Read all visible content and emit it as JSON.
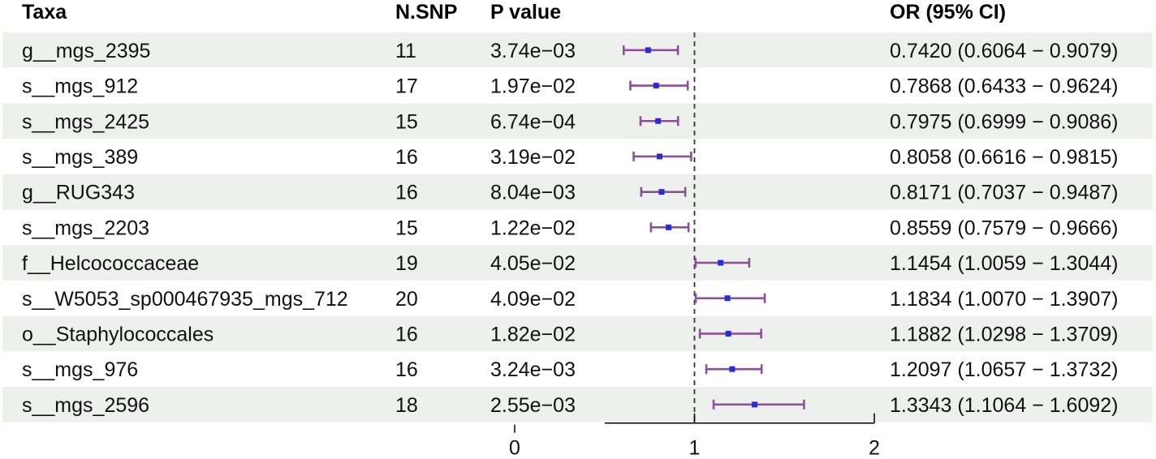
{
  "chart_data": {
    "type": "forest",
    "headers": {
      "taxa": "Taxa",
      "nsnp": "N.SNP",
      "pvalue": "P value",
      "or": "OR (95% CI)"
    },
    "rows": [
      {
        "taxa": "g__mgs_2395",
        "nsnp": "11",
        "pvalue": "3.74e−03",
        "or": 0.742,
        "lower": 0.6064,
        "upper": 0.9079,
        "or_text": "0.7420 (0.6064 − 0.9079)"
      },
      {
        "taxa": "s__mgs_912",
        "nsnp": "17",
        "pvalue": "1.97e−02",
        "or": 0.7868,
        "lower": 0.6433,
        "upper": 0.9624,
        "or_text": "0.7868 (0.6433 − 0.9624)"
      },
      {
        "taxa": "s__mgs_2425",
        "nsnp": "15",
        "pvalue": "6.74e−04",
        "or": 0.7975,
        "lower": 0.6999,
        "upper": 0.9086,
        "or_text": "0.7975 (0.6999 − 0.9086)"
      },
      {
        "taxa": "s__mgs_389",
        "nsnp": "16",
        "pvalue": "3.19e−02",
        "or": 0.8058,
        "lower": 0.6616,
        "upper": 0.9815,
        "or_text": "0.8058 (0.6616 − 0.9815)"
      },
      {
        "taxa": "g__RUG343",
        "nsnp": "16",
        "pvalue": "8.04e−03",
        "or": 0.8171,
        "lower": 0.7037,
        "upper": 0.9487,
        "or_text": "0.8171 (0.7037 − 0.9487)"
      },
      {
        "taxa": "s__mgs_2203",
        "nsnp": "15",
        "pvalue": "1.22e−02",
        "or": 0.8559,
        "lower": 0.7579,
        "upper": 0.9666,
        "or_text": "0.8559 (0.7579 − 0.9666)"
      },
      {
        "taxa": "f__Helcococcaceae",
        "nsnp": "19",
        "pvalue": "4.05e−02",
        "or": 1.1454,
        "lower": 1.0059,
        "upper": 1.3044,
        "or_text": "1.1454 (1.0059 − 1.3044)"
      },
      {
        "taxa": "s__W5053_sp000467935_mgs_712",
        "nsnp": "20",
        "pvalue": "4.09e−02",
        "or": 1.1834,
        "lower": 1.007,
        "upper": 1.3907,
        "or_text": "1.1834 (1.0070 − 1.3907)"
      },
      {
        "taxa": "o__Staphylococcales",
        "nsnp": "16",
        "pvalue": "1.82e−02",
        "or": 1.1882,
        "lower": 1.0298,
        "upper": 1.3709,
        "or_text": "1.1882 (1.0298 − 1.3709)"
      },
      {
        "taxa": "s__mgs_976",
        "nsnp": "16",
        "pvalue": "3.24e−03",
        "or": 1.2097,
        "lower": 1.0657,
        "upper": 1.3732,
        "or_text": "1.2097 (1.0657 − 1.3732)"
      },
      {
        "taxa": "s__mgs_2596",
        "nsnp": "18",
        "pvalue": "2.55e−03",
        "or": 1.3343,
        "lower": 1.1064,
        "upper": 1.6092,
        "or_text": "1.3343 (1.1064 − 1.6092)"
      }
    ],
    "x_ticks": [
      "0",
      "1",
      "2"
    ],
    "xlim": [
      0,
      2
    ],
    "reference_line": 1,
    "colors": {
      "stripe": "#eef0ee",
      "ci_line": "#8e4f9a",
      "point": "#2a2ad8",
      "ref_line": "#333333",
      "axis": "#000000"
    }
  }
}
